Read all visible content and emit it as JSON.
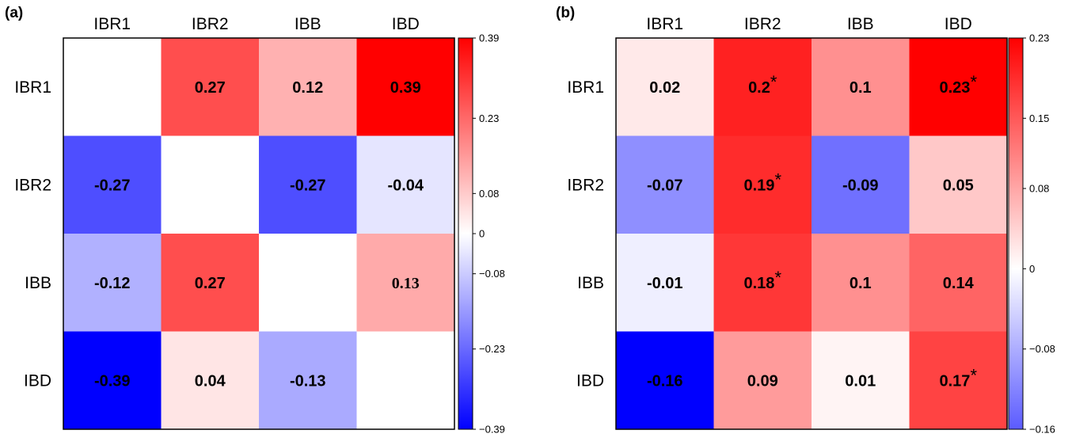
{
  "chart_data": [
    {
      "type": "heatmap",
      "panel_label": "(a)",
      "columns": [
        "IBR1",
        "IBR2",
        "IBB",
        "IBD"
      ],
      "rows": [
        "IBR1",
        "IBR2",
        "IBB",
        "IBD"
      ],
      "values": [
        [
          0,
          0.27,
          0.12,
          0.39
        ],
        [
          -0.27,
          0,
          -0.27,
          -0.04
        ],
        [
          -0.12,
          0.27,
          0,
          0.13
        ],
        [
          -0.39,
          0.04,
          -0.13,
          0
        ]
      ],
      "cell_labels": [
        [
          "",
          "0.27",
          "0.12",
          "0.39"
        ],
        [
          "-0.27",
          "",
          "-0.27",
          "-0.04"
        ],
        [
          "-0.12",
          "0.27",
          "",
          "0.13"
        ],
        [
          "-0.39",
          "0.04",
          "-0.13",
          ""
        ]
      ],
      "colorbar": {
        "min": -0.39,
        "max": 0.39,
        "ticks": [
          0.39,
          0.23,
          0.08,
          0,
          -0.08,
          -0.23,
          -0.39
        ],
        "tick_labels": [
          "0.39",
          "0.23",
          "0.08",
          "0",
          "−0.08",
          "−0.23",
          "−0.39"
        ],
        "low_color": "#0000ff",
        "mid_color": "#ffffff",
        "high_color": "#ff0000"
      }
    },
    {
      "type": "heatmap",
      "panel_label": "(b)",
      "columns": [
        "IBR1",
        "IBR2",
        "IBB",
        "IBD"
      ],
      "rows": [
        "IBR1",
        "IBR2",
        "IBB",
        "IBD"
      ],
      "values": [
        [
          0.02,
          0.2,
          0.1,
          0.23
        ],
        [
          -0.07,
          0.19,
          -0.09,
          0.05
        ],
        [
          -0.01,
          0.18,
          0.1,
          0.14
        ],
        [
          -0.16,
          0.09,
          0.01,
          0.17
        ]
      ],
      "cell_labels": [
        [
          "0.02",
          "0.2*",
          "0.1",
          "0.23*"
        ],
        [
          "-0.07",
          "0.19*",
          "-0.09",
          "0.05"
        ],
        [
          "-0.01",
          "0.18*",
          "0.1",
          "0.14"
        ],
        [
          "-0.16",
          "0.09",
          "0.01",
          "0.17*"
        ]
      ],
      "colorbar": {
        "min": -0.16,
        "max": 0.23,
        "ticks": [
          0.23,
          0.15,
          0.08,
          0,
          -0.08,
          -0.16
        ],
        "tick_labels": [
          "0.23",
          "0.15",
          "0.08",
          "0",
          "−0.08",
          "−0.16"
        ],
        "low_color": "#0000ff",
        "mid_color": "#ffffff",
        "high_color": "#ff0000"
      }
    }
  ]
}
